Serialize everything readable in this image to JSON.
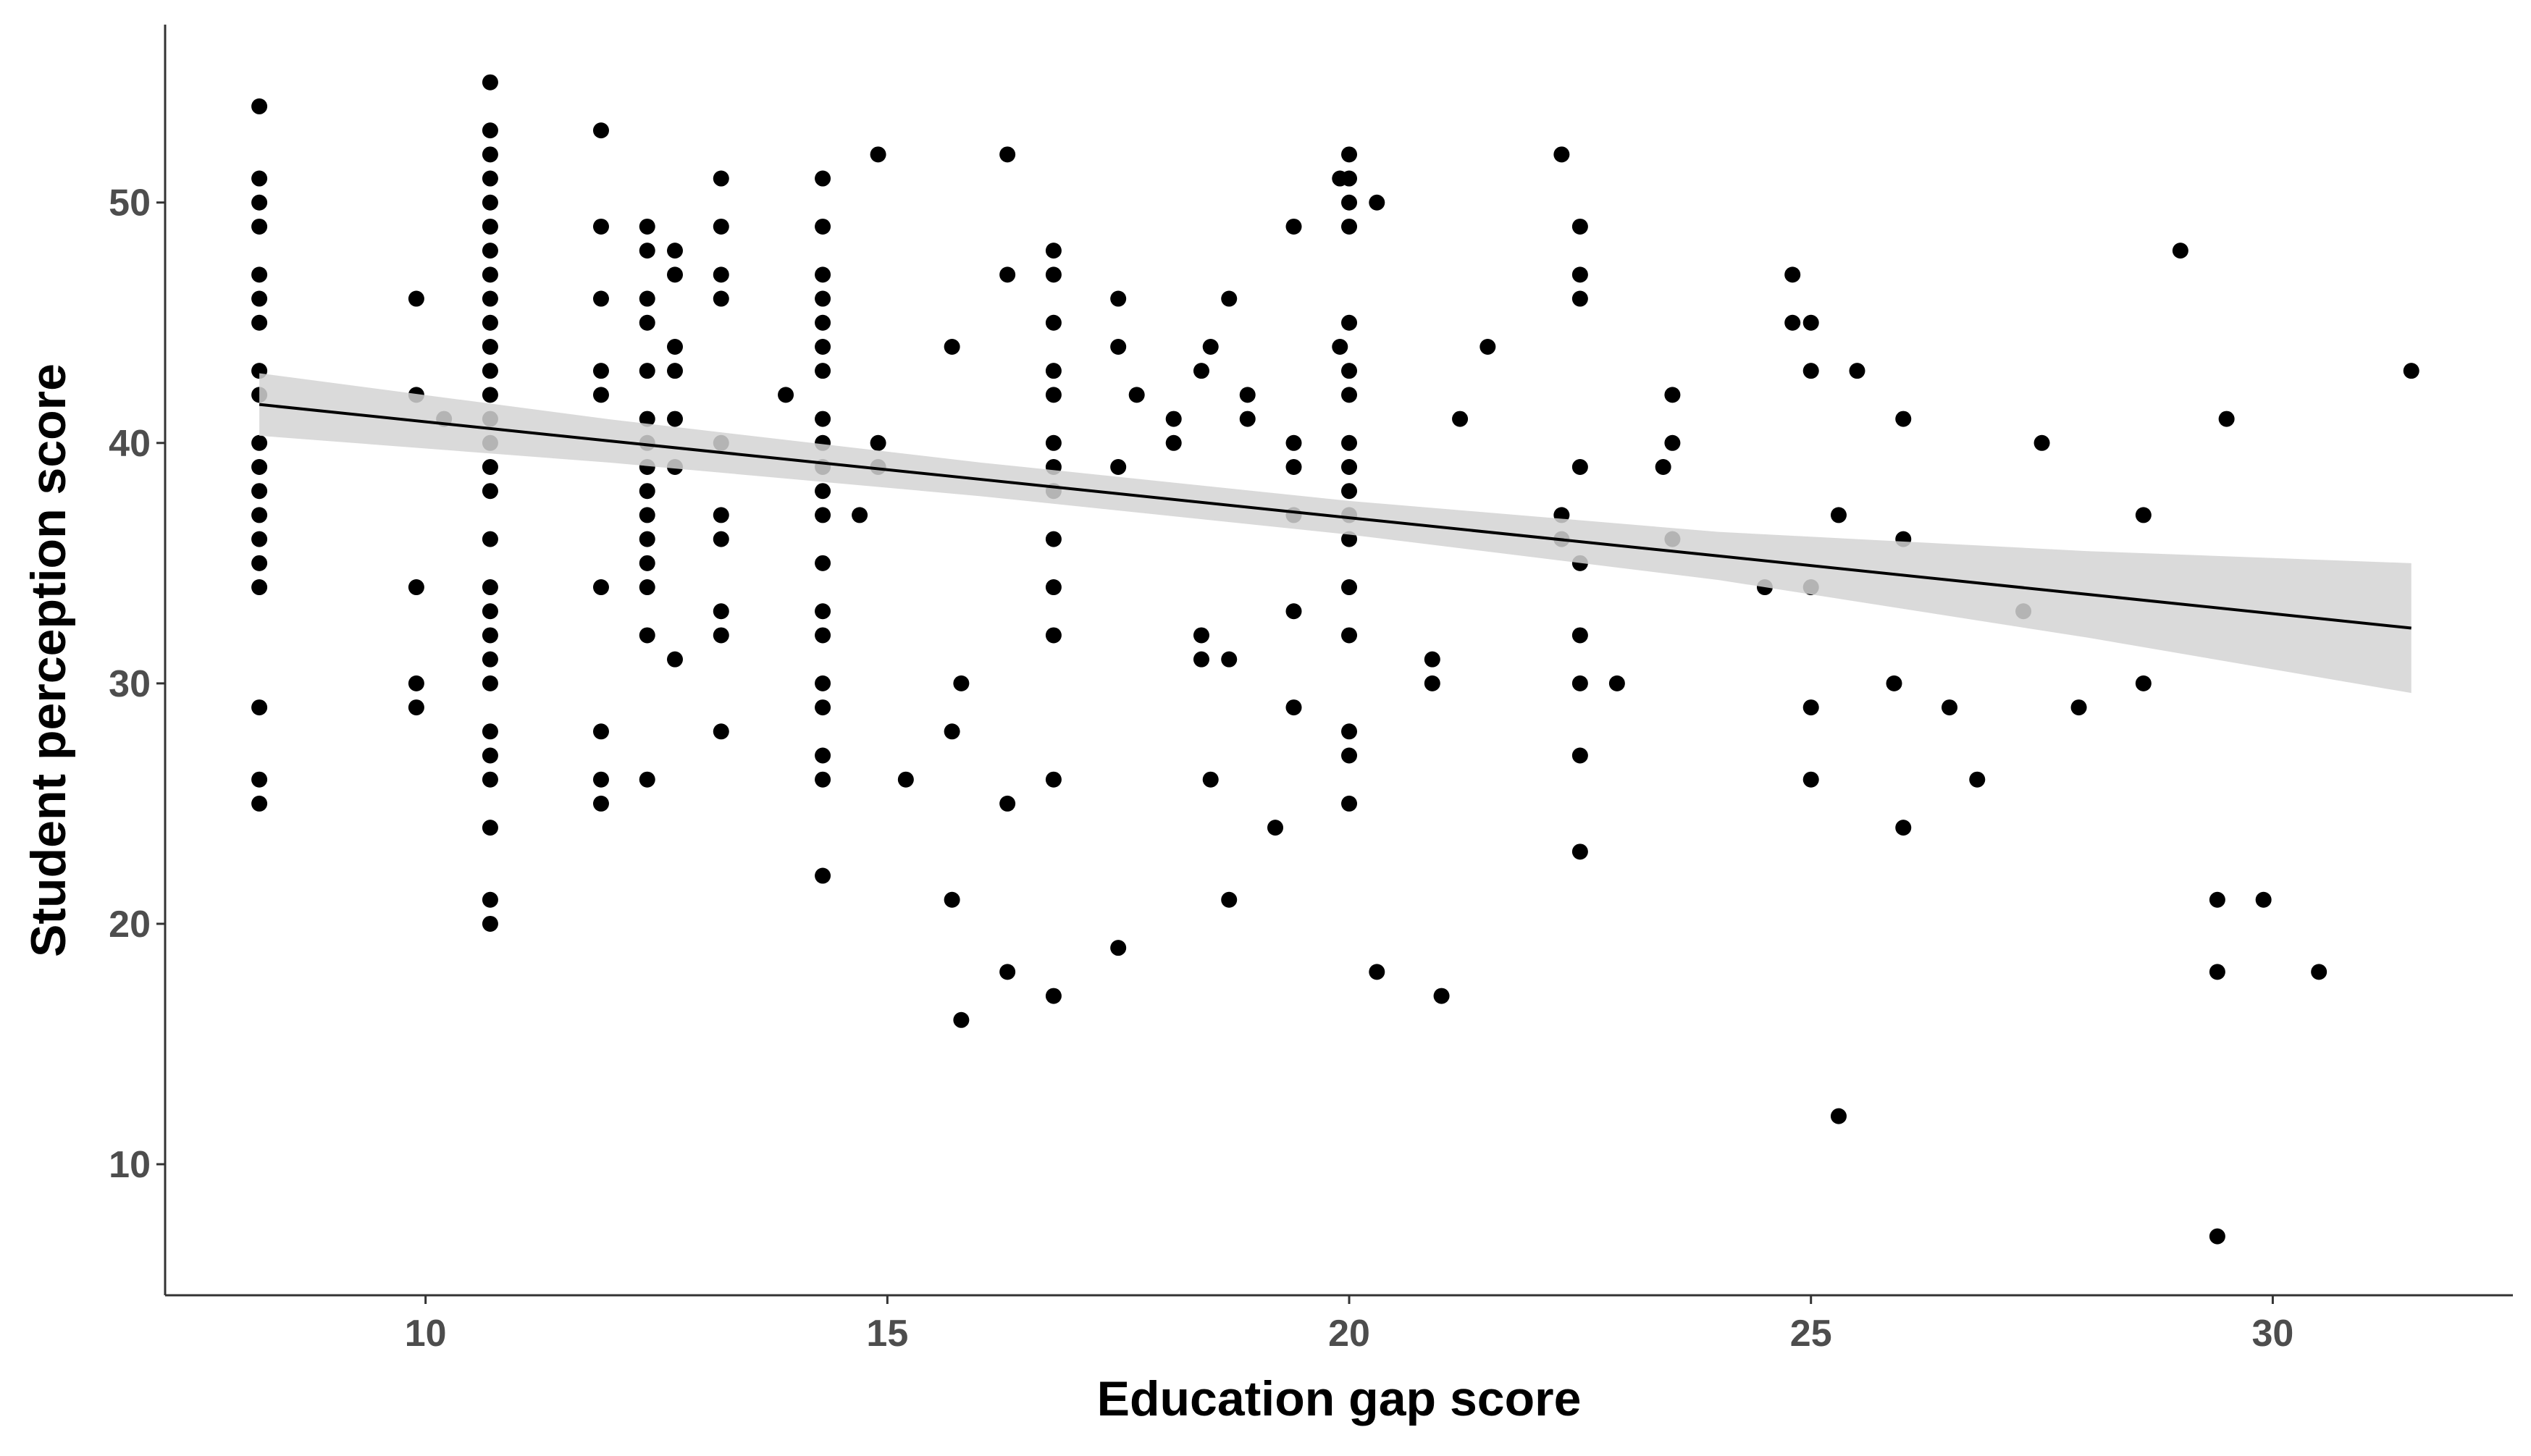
{
  "chart_data": {
    "type": "scatter",
    "xlabel": "Education gap score",
    "ylabel": "Student perception score",
    "xlim": [
      7.18,
      32.6
    ],
    "ylim": [
      4.55,
      57.4
    ],
    "xticks": [
      10,
      15,
      20,
      25,
      30
    ],
    "yticks": [
      10,
      20,
      30,
      40,
      50
    ],
    "color": "#000000",
    "grid": false,
    "groups": [
      {
        "x": 8.2,
        "values": [
          54,
          51,
          50,
          49,
          47,
          46,
          45,
          43,
          42,
          40,
          39,
          38,
          37,
          36,
          35,
          34,
          29,
          26,
          25
        ]
      },
      {
        "x": 9.9,
        "values": [
          46,
          42,
          34,
          30,
          29
        ]
      },
      {
        "x": 10.2,
        "values": [
          41
        ]
      },
      {
        "x": 10.7,
        "values": [
          55,
          53,
          52,
          51,
          50,
          49,
          48,
          47,
          46,
          45,
          44,
          43,
          42,
          41,
          40,
          39,
          38,
          36,
          34,
          33,
          32,
          31,
          30,
          28,
          27,
          26,
          24,
          21,
          20
        ]
      },
      {
        "x": 11.9,
        "values": [
          53,
          49,
          46,
          43,
          42,
          34,
          28,
          26,
          25
        ]
      },
      {
        "x": 12.4,
        "values": [
          49,
          48,
          46,
          45,
          43,
          41,
          40,
          39,
          38,
          37,
          36,
          35,
          34,
          32,
          26
        ]
      },
      {
        "x": 12.7,
        "values": [
          48,
          47,
          44,
          43,
          41,
          39,
          31
        ]
      },
      {
        "x": 13.2,
        "values": [
          51,
          49,
          47,
          46,
          40,
          37,
          36,
          33,
          32,
          28
        ]
      },
      {
        "x": 13.9,
        "values": [
          42
        ]
      },
      {
        "x": 14.3,
        "values": [
          51,
          49,
          47,
          46,
          45,
          44,
          43,
          41,
          40,
          39,
          38,
          37,
          35,
          33,
          32,
          30,
          29,
          27,
          26,
          22
        ]
      },
      {
        "x": 14.7,
        "values": [
          37
        ]
      },
      {
        "x": 14.9,
        "values": [
          52,
          40,
          39
        ]
      },
      {
        "x": 15.2,
        "values": [
          26
        ]
      },
      {
        "x": 15.7,
        "values": [
          44,
          28,
          21
        ]
      },
      {
        "x": 15.8,
        "values": [
          30,
          16
        ]
      },
      {
        "x": 16.3,
        "values": [
          52,
          47,
          25,
          18
        ]
      },
      {
        "x": 16.8,
        "values": [
          48,
          47,
          45,
          43,
          42,
          40,
          39,
          38,
          36,
          34,
          32,
          26,
          17
        ]
      },
      {
        "x": 17.5,
        "values": [
          46,
          44,
          39,
          19
        ]
      },
      {
        "x": 17.7,
        "values": [
          42
        ]
      },
      {
        "x": 18.1,
        "values": [
          41,
          40
        ]
      },
      {
        "x": 18.4,
        "values": [
          43,
          32,
          31
        ]
      },
      {
        "x": 18.5,
        "values": [
          44,
          26
        ]
      },
      {
        "x": 18.7,
        "values": [
          46,
          31,
          21
        ]
      },
      {
        "x": 18.9,
        "values": [
          42,
          41
        ]
      },
      {
        "x": 19.2,
        "values": [
          24
        ]
      },
      {
        "x": 19.4,
        "values": [
          49,
          40,
          39,
          37,
          33,
          29
        ]
      },
      {
        "x": 19.9,
        "values": [
          51,
          44
        ]
      },
      {
        "x": 20.0,
        "values": [
          52,
          51,
          50,
          49,
          45,
          43,
          42,
          40,
          39,
          38,
          37,
          36,
          34,
          32,
          28,
          27,
          25
        ]
      },
      {
        "x": 20.3,
        "values": [
          50,
          18
        ]
      },
      {
        "x": 20.9,
        "values": [
          31,
          30
        ]
      },
      {
        "x": 21.0,
        "values": [
          17
        ]
      },
      {
        "x": 21.2,
        "values": [
          41
        ]
      },
      {
        "x": 21.5,
        "values": [
          44
        ]
      },
      {
        "x": 22.3,
        "values": [
          52,
          37,
          36
        ]
      },
      {
        "x": 22.5,
        "values": [
          49,
          47,
          46,
          39,
          35,
          32,
          30,
          27,
          23
        ]
      },
      {
        "x": 22.9,
        "values": [
          30
        ]
      },
      {
        "x": 23.4,
        "values": [
          39
        ]
      },
      {
        "x": 23.5,
        "values": [
          42,
          40,
          36
        ]
      },
      {
        "x": 24.5,
        "values": [
          34
        ]
      },
      {
        "x": 24.8,
        "values": [
          47,
          45
        ]
      },
      {
        "x": 25.0,
        "values": [
          45,
          43,
          34,
          29,
          26
        ]
      },
      {
        "x": 25.3,
        "values": [
          37,
          12
        ]
      },
      {
        "x": 25.5,
        "values": [
          43
        ]
      },
      {
        "x": 25.9,
        "values": [
          30
        ]
      },
      {
        "x": 26.0,
        "values": [
          41,
          36,
          24
        ]
      },
      {
        "x": 26.5,
        "values": [
          29
        ]
      },
      {
        "x": 26.8,
        "values": [
          26
        ]
      },
      {
        "x": 27.3,
        "values": [
          33
        ]
      },
      {
        "x": 27.5,
        "values": [
          40
        ]
      },
      {
        "x": 27.9,
        "values": [
          29
        ]
      },
      {
        "x": 28.6,
        "values": [
          37,
          30
        ]
      },
      {
        "x": 29.0,
        "values": [
          48
        ]
      },
      {
        "x": 29.4,
        "values": [
          21,
          18,
          7
        ]
      },
      {
        "x": 29.5,
        "values": [
          41
        ]
      },
      {
        "x": 29.9,
        "values": [
          21
        ]
      },
      {
        "x": 30.5,
        "values": [
          18
        ]
      },
      {
        "x": 31.5,
        "values": [
          43
        ]
      }
    ],
    "fit": {
      "color": "#000000",
      "band_color": "#d3d3d3",
      "x": [
        8.2,
        12,
        16,
        20,
        24,
        28,
        31.5
      ],
      "values": [
        41.6,
        40.08,
        38.49,
        36.89,
        35.3,
        33.7,
        32.3
      ],
      "lower": [
        40.3,
        39.18,
        37.79,
        36.19,
        34.3,
        31.9,
        29.6
      ],
      "upper": [
        42.9,
        40.98,
        39.19,
        37.59,
        36.3,
        35.5,
        35.0
      ]
    }
  }
}
